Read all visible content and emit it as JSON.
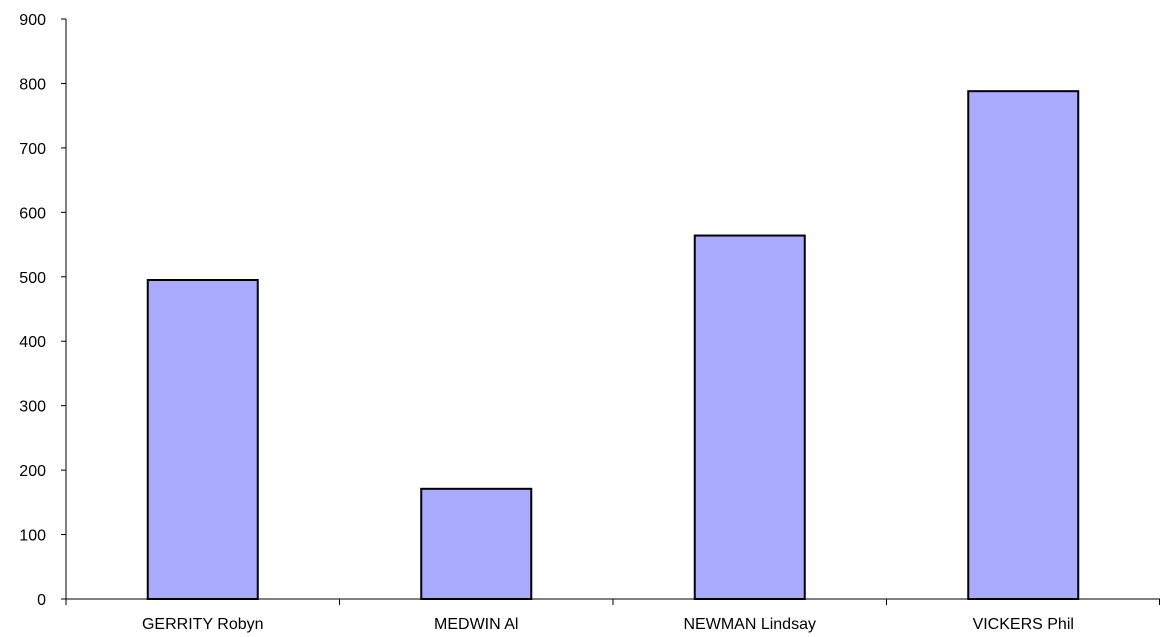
{
  "chart_data": {
    "type": "bar",
    "title": "",
    "xlabel": "",
    "ylabel": "",
    "categories": [
      "GERRITY Robyn",
      "MEDWIN Al",
      "NEWMAN Lindsay",
      "VICKERS Phil"
    ],
    "series": [
      {
        "values": [
          495,
          171,
          564,
          788
        ]
      }
    ],
    "ylim": [
      0,
      900
    ],
    "yticks": [
      "0",
      "100",
      "200",
      "300",
      "400",
      "500",
      "600",
      "700",
      "800",
      "900"
    ],
    "grid": false,
    "legend": "none",
    "colors": {
      "bar_fill": "#aaaaff",
      "bar_stroke": "#000000",
      "axis": "#000000"
    }
  }
}
